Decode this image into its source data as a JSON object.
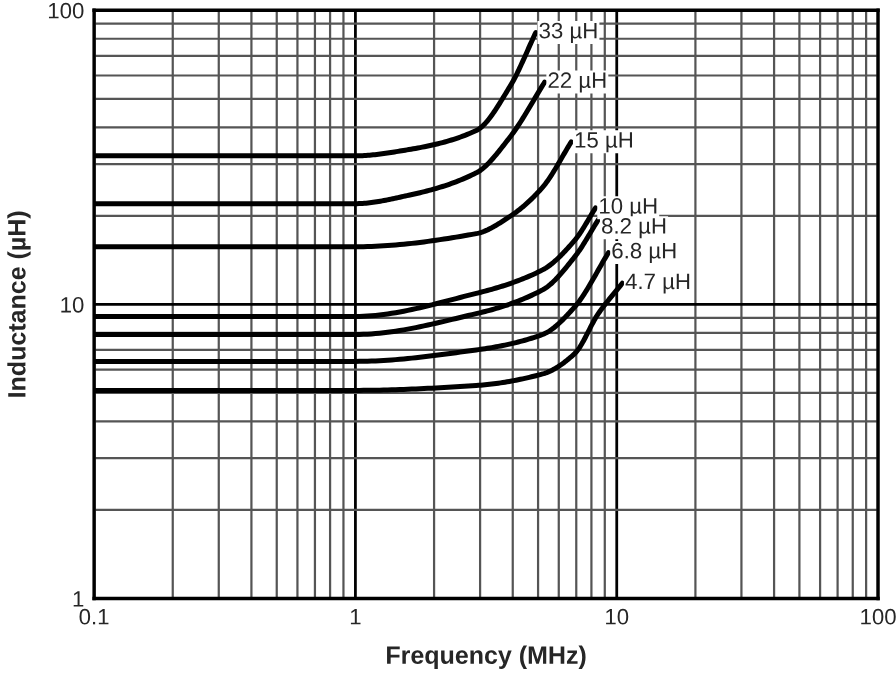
{
  "chart_data": {
    "type": "line",
    "xlabel": "Frequency (MHz)",
    "ylabel": "Inductance (µH)",
    "log": "xy",
    "grid": true,
    "legend": false,
    "marker": "none",
    "line_style": "solid",
    "xlim": [
      0.1,
      100
    ],
    "ylim": [
      1,
      100
    ],
    "xticks": [
      0.1,
      {
        "value": 0.2,
        "label": null
      },
      {
        "value": 0.3,
        "label": null
      },
      {
        "value": 0.4,
        "label": null
      },
      {
        "value": 0.5,
        "label": null
      },
      {
        "value": 0.6,
        "label": null
      },
      {
        "value": 0.7,
        "label": null
      },
      {
        "value": 0.8,
        "label": null
      },
      {
        "value": 0.9,
        "label": null
      },
      1,
      {
        "value": 2,
        "label": null
      },
      {
        "value": 3,
        "label": null
      },
      {
        "value": 4,
        "label": null
      },
      {
        "value": 5,
        "label": null
      },
      {
        "value": 6,
        "label": null
      },
      {
        "value": 7,
        "label": null
      },
      {
        "value": 8,
        "label": null
      },
      {
        "value": 9,
        "label": null
      },
      10,
      {
        "value": 20,
        "label": null
      },
      {
        "value": 30,
        "label": null
      },
      {
        "value": 40,
        "label": null
      },
      {
        "value": 50,
        "label": null
      },
      {
        "value": 60,
        "label": null
      },
      {
        "value": 70,
        "label": null
      },
      {
        "value": 80,
        "label": null
      },
      {
        "value": 90,
        "label": null
      },
      100
    ],
    "yticks": [
      1,
      {
        "value": 2,
        "label": null
      },
      {
        "value": 3,
        "label": null
      },
      {
        "value": 4,
        "label": null
      },
      {
        "value": 5,
        "label": null
      },
      {
        "value": 6,
        "label": null
      },
      {
        "value": 7,
        "label": null
      },
      {
        "value": 8,
        "label": null
      },
      {
        "value": 9,
        "label": null
      },
      10,
      {
        "value": 20,
        "label": null
      },
      {
        "value": 30,
        "label": null
      },
      {
        "value": 40,
        "label": null
      },
      {
        "value": 50,
        "label": null
      },
      {
        "value": 60,
        "label": null
      },
      {
        "value": 70,
        "label": null
      },
      {
        "value": 80,
        "label": null
      },
      {
        "value": 90,
        "label": null
      },
      100
    ],
    "series": [
      {
        "color": "#000000",
        "x": [
          0.1,
          1,
          1.6,
          2.9,
          3.9,
          4.9
        ],
        "values": [
          32,
          32,
          33.6,
          39,
          55,
          84
        ]
      },
      {
        "color": "#000000",
        "x": [
          0.1,
          1,
          1.6,
          2.9,
          3.9,
          5.3
        ],
        "values": [
          22,
          22,
          23.5,
          28,
          37,
          57
        ]
      },
      {
        "color": "#000000",
        "x": [
          0.1,
          1,
          2.9,
          3.9,
          5.2,
          6.7
        ],
        "values": [
          15.7,
          15.7,
          17.4,
          19.9,
          25,
          35.7
        ]
      },
      {
        "color": "#000000",
        "x": [
          0.1,
          1,
          2.9,
          5.2,
          6.9,
          8.3
        ],
        "values": [
          9.1,
          9.1,
          10.9,
          13.1,
          16.5,
          21.3
        ]
      },
      {
        "color": "#000000",
        "x": [
          0.1,
          1,
          2.9,
          5.2,
          6.9,
          8.5
        ],
        "values": [
          7.9,
          7.9,
          9.3,
          11.2,
          14.5,
          19.4
        ]
      },
      {
        "color": "#000000",
        "x": [
          0.1,
          1,
          2.9,
          5.2,
          6.9,
          9.3
        ],
        "values": [
          6.4,
          6.4,
          7.0,
          7.9,
          9.8,
          15
        ]
      },
      {
        "color": "#000000",
        "x": [
          0.1,
          1,
          2.9,
          5.2,
          6.9,
          8.5,
          10.5
        ],
        "values": [
          5.1,
          5.1,
          5.3,
          5.8,
          6.8,
          9.3,
          11.8
        ]
      }
    ],
    "annotations": [
      {
        "text": "33 µH",
        "x": 4.9,
        "y": 84
      },
      {
        "text": "22 µH",
        "x": 5.3,
        "y": 57
      },
      {
        "text": "15 µH",
        "x": 6.7,
        "y": 35.7
      },
      {
        "text": "10 µH",
        "x": 8.3,
        "y": 21.3
      },
      {
        "text": "8.2 µH",
        "x": 8.5,
        "y": 19.4
      },
      {
        "text": "6.8 µH",
        "x": 9.3,
        "y": 15
      },
      {
        "text": "4.7 µH",
        "x": 10.5,
        "y": 11.8
      }
    ]
  }
}
